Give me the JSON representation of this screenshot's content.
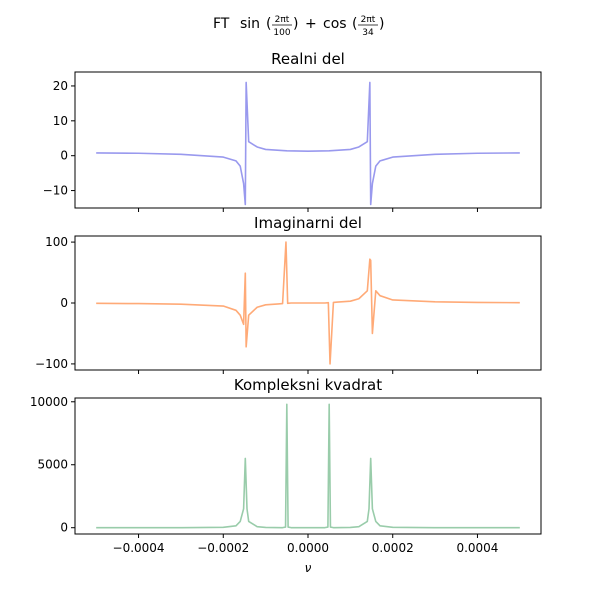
{
  "figure": {
    "suptitle_prefix": "FT",
    "suptitle_sin": "sin",
    "suptitle_cos": "cos",
    "suptitle_num1": "2πt",
    "suptitle_den1": "100",
    "suptitle_plus": "+",
    "suptitle_num2": "2πt",
    "suptitle_den2": "34"
  },
  "chart_data": [
    {
      "type": "line",
      "title": "Realni del",
      "color": "#9999ee",
      "xlim": [
        -0.00055,
        0.00055
      ],
      "ylim": [
        -15,
        24
      ],
      "yticks": [
        -10,
        0,
        10,
        20
      ],
      "ytick_labels": [
        "−10",
        "0",
        "10",
        "20"
      ],
      "x": [
        -0.0005,
        -0.0004,
        -0.0003,
        -0.0002,
        -0.00017,
        -0.00016,
        -0.000152,
        -0.000148,
        -0.000146,
        -0.00014,
        -0.00012,
        -0.0001,
        -5e-05,
        0,
        5e-05,
        0.0001,
        0.00012,
        0.00014,
        0.000146,
        0.000148,
        0.000152,
        0.00016,
        0.00017,
        0.0002,
        0.0003,
        0.0004,
        0.0005
      ],
      "y": [
        0.8,
        0.7,
        0.4,
        -0.4,
        -1.5,
        -3,
        -8,
        -14,
        21,
        4,
        2.5,
        1.8,
        1.4,
        1.3,
        1.4,
        1.8,
        2.5,
        4,
        21,
        -14,
        -8,
        -3,
        -1.5,
        -0.4,
        0.4,
        0.7,
        0.8
      ]
    },
    {
      "type": "line",
      "title": "Imaginarni del",
      "color": "#ffaa77",
      "xlim": [
        -0.00055,
        0.00055
      ],
      "ylim": [
        -110,
        110
      ],
      "yticks": [
        -100,
        0,
        100
      ],
      "ytick_labels": [
        "−100",
        "0",
        "100"
      ],
      "x": [
        -0.0005,
        -0.0004,
        -0.0003,
        -0.0002,
        -0.00017,
        -0.00016,
        -0.000152,
        -0.000148,
        -0.000146,
        -0.00014,
        -0.00012,
        -0.0001,
        -7e-05,
        -6e-05,
        -5.2e-05,
        -4.8e-05,
        -4e-05,
        4e-05,
        4.8e-05,
        5.2e-05,
        6e-05,
        7e-05,
        0.0001,
        0.00012,
        0.00014,
        0.000146,
        0.000148,
        0.000152,
        0.00016,
        0.00017,
        0.0002,
        0.0003,
        0.0004,
        0.0005
      ],
      "y": [
        -0.5,
        -1,
        -2,
        -5,
        -12,
        -20,
        -35,
        49,
        -72,
        -20,
        -7,
        -3,
        -1.5,
        -1,
        100,
        -0.5,
        0,
        0,
        0.5,
        -100,
        1,
        1.5,
        3,
        7,
        20,
        72,
        70,
        -50,
        20,
        12,
        5,
        2,
        1,
        0.5
      ]
    },
    {
      "type": "line",
      "title": "Kompleksni kvadrat",
      "color": "#99ccaa",
      "xlim": [
        -0.00055,
        0.00055
      ],
      "ylim": [
        -500,
        10300
      ],
      "yticks": [
        0,
        5000,
        10000
      ],
      "ytick_labels": [
        "0",
        "5000",
        "10000"
      ],
      "xticks": [
        -0.0004,
        -0.0002,
        0,
        0.0002,
        0.0004
      ],
      "xtick_labels": [
        "−0.0004",
        "−0.0002",
        "0.0000",
        "0.0002",
        "0.0004"
      ],
      "xlabel": "ν",
      "x": [
        -0.0005,
        -0.0003,
        -0.0002,
        -0.00017,
        -0.00016,
        -0.000152,
        -0.000148,
        -0.000144,
        -0.00014,
        -0.00012,
        -0.0001,
        -6e-05,
        -5.3e-05,
        -5e-05,
        -4.7e-05,
        -4e-05,
        4e-05,
        4.7e-05,
        5e-05,
        5.3e-05,
        6e-05,
        0.0001,
        0.00012,
        0.00014,
        0.000144,
        0.000148,
        0.000152,
        0.00016,
        0.00017,
        0.0002,
        0.0003,
        0.0005
      ],
      "y": [
        0,
        5,
        30,
        150,
        500,
        1500,
        5500,
        1500,
        500,
        80,
        20,
        5,
        50,
        9800,
        50,
        5,
        5,
        50,
        9800,
        50,
        5,
        20,
        80,
        500,
        1500,
        5500,
        1500,
        500,
        150,
        30,
        5,
        0
      ]
    }
  ]
}
